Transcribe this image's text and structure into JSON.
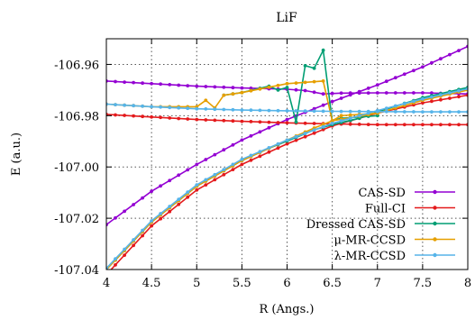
{
  "chart_data": {
    "type": "line",
    "title": "LiF",
    "xlabel": "R (Angs.)",
    "ylabel": "E (a.u.)",
    "xlim": [
      4,
      8
    ],
    "ylim": [
      -107.04,
      -106.95
    ],
    "x_ticks": [
      "4",
      "4.5",
      "5",
      "5.5",
      "6",
      "6.5",
      "7",
      "7.5",
      "8"
    ],
    "y_ticks": [
      "-106.96",
      "-106.98",
      "-107.00",
      "-107.02",
      "-107.04"
    ],
    "grid": "dotted",
    "legend": "bottom-right",
    "series": [
      {
        "name": "CAS-SD",
        "color": "#9400d3",
        "points": [
          [
            4.0,
            -106.9665
          ],
          [
            4.5,
            -106.9675
          ],
          [
            5.0,
            -106.9685
          ],
          [
            5.5,
            -106.9692
          ],
          [
            6.0,
            -106.9697
          ],
          [
            6.2,
            -106.9702
          ],
          [
            6.4,
            -106.9715
          ],
          [
            6.6,
            -106.9712
          ],
          [
            7.0,
            -106.9711
          ],
          [
            7.5,
            -106.9711
          ],
          [
            8.0,
            -106.9715
          ]
        ]
      },
      {
        "name": "CAS-SD",
        "color": "#9400d3",
        "points": [
          [
            4.0,
            -107.0225
          ],
          [
            4.5,
            -107.0095
          ],
          [
            5.0,
            -106.999
          ],
          [
            5.5,
            -106.9895
          ],
          [
            6.0,
            -106.9815
          ],
          [
            6.5,
            -106.9745
          ],
          [
            7.0,
            -106.968
          ],
          [
            7.5,
            -106.961
          ],
          [
            8.0,
            -106.953
          ]
        ]
      },
      {
        "name": "Full-CI",
        "color": "#e41a1c",
        "points": [
          [
            4.0,
            -106.9795
          ],
          [
            4.5,
            -106.9805
          ],
          [
            5.0,
            -106.9815
          ],
          [
            5.5,
            -106.9822
          ],
          [
            6.0,
            -106.9828
          ],
          [
            6.5,
            -106.9832
          ],
          [
            7.0,
            -106.9835
          ],
          [
            7.5,
            -106.9835
          ],
          [
            8.0,
            -106.9835
          ]
        ]
      },
      {
        "name": "Full-CI",
        "color": "#e41a1c",
        "points": [
          [
            4.0,
            -107.042
          ],
          [
            4.5,
            -107.023
          ],
          [
            5.0,
            -107.009
          ],
          [
            5.5,
            -106.999
          ],
          [
            6.0,
            -106.991
          ],
          [
            6.5,
            -106.984
          ],
          [
            7.0,
            -106.979
          ],
          [
            7.5,
            -106.975
          ],
          [
            8.0,
            -106.972
          ]
        ]
      },
      {
        "name": "Dressed CAS-SD",
        "color": "#009e73",
        "points": [
          [
            4.0,
            -107.04
          ],
          [
            4.5,
            -107.0215
          ],
          [
            5.0,
            -107.0075
          ],
          [
            5.5,
            -106.9975
          ],
          [
            5.8,
            -106.9927
          ],
          [
            6.1,
            -106.9885
          ],
          [
            6.3,
            -106.9855
          ],
          [
            6.5,
            -106.9835
          ],
          [
            6.8,
            -106.981
          ],
          [
            7.0,
            -106.9785
          ],
          [
            7.5,
            -106.973
          ],
          [
            8.0,
            -106.969
          ]
        ]
      },
      {
        "name": "Dressed CAS-SD",
        "color": "#009e73",
        "points": [
          [
            5.3,
            -106.972
          ],
          [
            5.5,
            -106.971
          ],
          [
            5.8,
            -106.9685
          ],
          [
            5.9,
            -106.97
          ],
          [
            6.0,
            -106.969
          ],
          [
            6.1,
            -106.9825
          ],
          [
            6.2,
            -106.9605
          ],
          [
            6.3,
            -106.9615
          ],
          [
            6.4,
            -106.9545
          ],
          [
            6.5,
            -106.982
          ],
          [
            6.6,
            -106.981
          ],
          [
            6.8,
            -106.9805
          ],
          [
            7.0,
            -106.98
          ]
        ]
      },
      {
        "name": "μ-MR-CCSD",
        "color": "#e69f00",
        "points": [
          [
            4.0,
            -106.9755
          ],
          [
            4.5,
            -106.9765
          ],
          [
            5.0,
            -106.9765
          ],
          [
            5.1,
            -106.974
          ],
          [
            5.2,
            -106.977
          ],
          [
            5.3,
            -106.972
          ],
          [
            5.5,
            -106.971
          ],
          [
            6.0,
            -106.9675
          ],
          [
            6.4,
            -106.9665
          ],
          [
            6.5,
            -106.982
          ],
          [
            6.6,
            -106.98
          ],
          [
            7.0,
            -106.979
          ],
          [
            7.5,
            -106.974
          ],
          [
            8.0,
            -106.97
          ]
        ]
      },
      {
        "name": "μ-MR-CCSD",
        "color": "#e69f00",
        "points": [
          [
            4.0,
            -107.04
          ],
          [
            4.5,
            -107.0215
          ],
          [
            5.0,
            -107.0075
          ],
          [
            5.5,
            -106.9975
          ],
          [
            6.0,
            -106.9895
          ],
          [
            6.3,
            -106.9848
          ],
          [
            6.5,
            -106.982
          ],
          [
            7.0,
            -106.979
          ]
        ]
      },
      {
        "name": "λ-MR-CCSD",
        "color": "#56b4e9",
        "points": [
          [
            4.0,
            -106.9755
          ],
          [
            4.5,
            -106.9765
          ],
          [
            5.0,
            -106.9773
          ],
          [
            5.5,
            -106.9778
          ],
          [
            6.0,
            -106.9781
          ],
          [
            6.5,
            -106.9783
          ],
          [
            7.0,
            -106.9784
          ],
          [
            7.5,
            -106.9785
          ],
          [
            8.0,
            -106.9785
          ]
        ]
      },
      {
        "name": "λ-MR-CCSD",
        "color": "#56b4e9",
        "points": [
          [
            4.0,
            -107.0395
          ],
          [
            4.5,
            -107.021
          ],
          [
            5.0,
            -107.007
          ],
          [
            5.5,
            -106.997
          ],
          [
            6.0,
            -106.9895
          ],
          [
            6.5,
            -106.983
          ],
          [
            7.0,
            -106.978
          ],
          [
            7.5,
            -106.9735
          ],
          [
            8.0,
            -106.9695
          ]
        ]
      }
    ],
    "legend_entries": [
      {
        "label": "CAS-SD",
        "color": "#9400d3"
      },
      {
        "label": "Full-CI",
        "color": "#e41a1c"
      },
      {
        "label": "Dressed CAS-SD",
        "color": "#009e73"
      },
      {
        "label": "μ-MR-CCSD",
        "color": "#e69f00"
      },
      {
        "label": "λ-MR-CCSD",
        "color": "#56b4e9"
      }
    ]
  }
}
